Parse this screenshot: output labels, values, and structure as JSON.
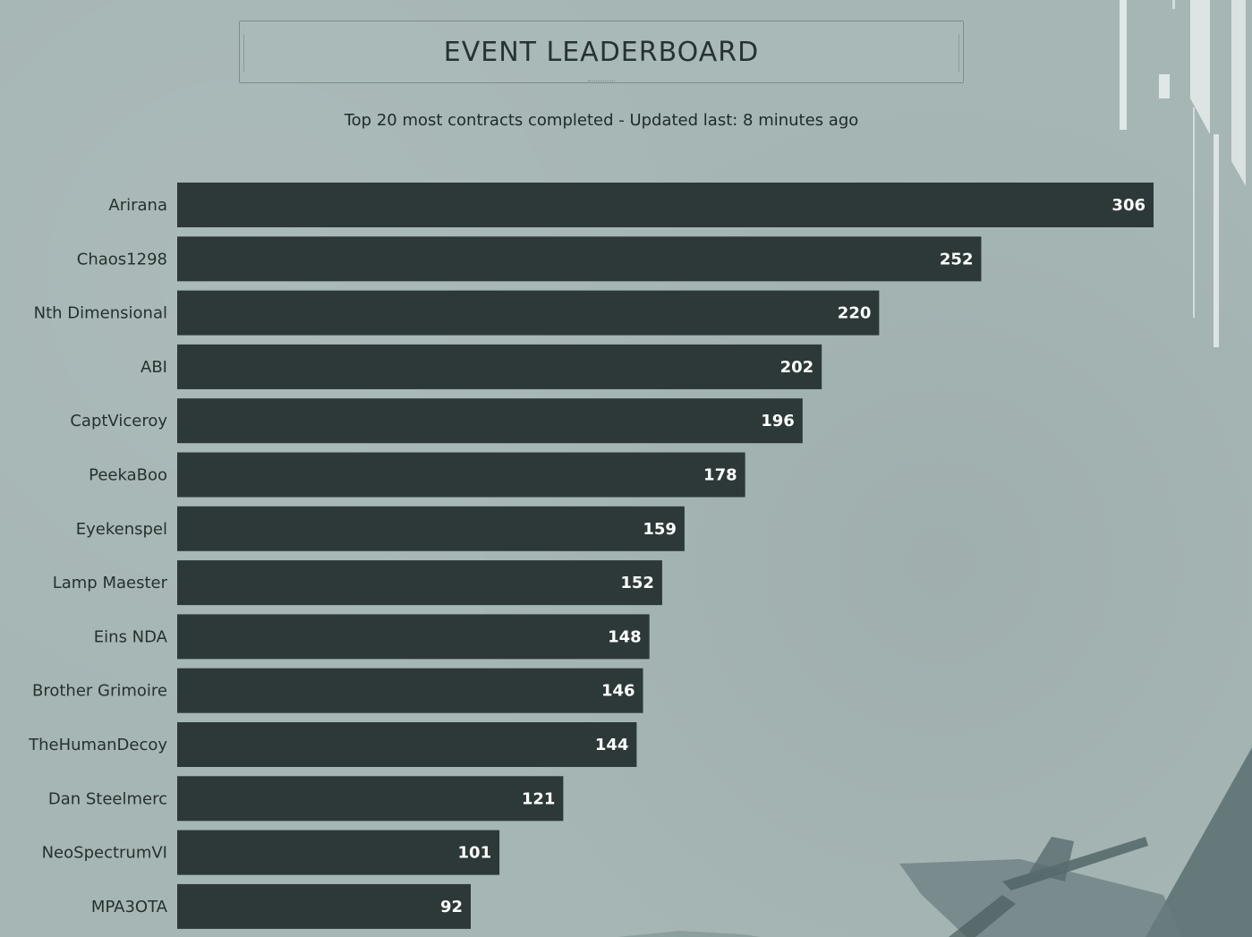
{
  "header": {
    "title": "EVENT LEADERBOARD",
    "subtitle": "Top 20 most contracts completed - Updated last: 8 minutes ago"
  },
  "colors": {
    "background": "#a6b6b5",
    "bar": "#2d3939",
    "value_text": "#ffffff",
    "label_text": "#26312f"
  },
  "chart_data": {
    "type": "bar",
    "orientation": "horizontal",
    "title": "",
    "xlabel": "",
    "ylabel": "",
    "categories": [
      "Arirana",
      "Chaos1298",
      "Nth Dimensional",
      "ABI",
      "CaptViceroy",
      "PeekaBoo",
      "Eyekenspel",
      "Lamp Maester",
      "Eins NDA",
      "Brother Grimoire",
      "TheHumanDecoy",
      "Dan Steelmerc",
      "NeoSpectrumVI",
      "MPA3OTA"
    ],
    "values": [
      306,
      252,
      220,
      202,
      196,
      178,
      159,
      152,
      148,
      146,
      144,
      121,
      101,
      92
    ],
    "xlim": [
      0,
      306
    ],
    "grid": false,
    "legend": "none",
    "data_labels": true
  }
}
